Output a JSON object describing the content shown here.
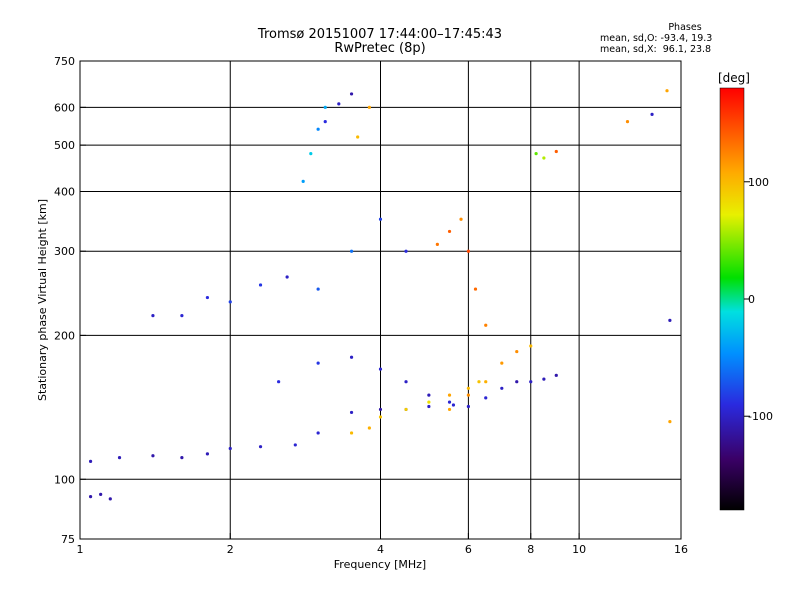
{
  "header": {
    "title_line1": "Tromsø 20151007 17:44:00–17:45:43",
    "title_line2": "RwPretec (8p)"
  },
  "phase_stats": {
    "heading": "Phases",
    "o_label": "mean, sd,O:",
    "o_values": "-93.4, 19.3",
    "x_label": "mean, sd,X:",
    "x_values": " 96.1, 23.8"
  },
  "colorbar": {
    "unit": "[deg]",
    "tick_labels": [
      "100",
      "0",
      "-100"
    ],
    "range": [
      -180,
      180
    ]
  },
  "chart_data": {
    "type": "scatter",
    "xlabel": "Frequency [MHz]",
    "ylabel": "Stationary phase Virtual Height [km]",
    "x_scale": "log",
    "y_scale": "log",
    "xlim": [
      1,
      16
    ],
    "ylim": [
      75,
      750
    ],
    "x_ticks": [
      1,
      2,
      4,
      6,
      8,
      10,
      16
    ],
    "x_tick_labels": [
      "1",
      "2",
      "4",
      "6",
      "8",
      "10",
      "16"
    ],
    "y_ticks": [
      75,
      100,
      200,
      300,
      400,
      500,
      600,
      750
    ],
    "y_tick_labels": [
      "75",
      "100",
      "200",
      "300",
      "400",
      "500",
      "600",
      "750"
    ],
    "grid_x": [
      2,
      4,
      6,
      8,
      10
    ],
    "grid_y": [
      100,
      200,
      300,
      400,
      500,
      600
    ],
    "grid": true,
    "series": [
      {
        "x": [
          1.05,
          1.2,
          1.4,
          1.6,
          1.8,
          2.0,
          2.3,
          2.7,
          3.0,
          3.5,
          4.0,
          4.5,
          5.0,
          5.6
        ],
        "y": [
          109,
          111,
          112,
          111,
          113,
          116,
          117,
          118,
          125,
          138,
          140,
          140,
          142,
          143
        ],
        "phase": [
          -105,
          -105,
          -110,
          -110,
          -105,
          -100,
          -100,
          -95,
          -95,
          -100,
          -110,
          -105,
          -100,
          -95
        ]
      },
      {
        "x": [
          2.5,
          3.0,
          3.5,
          4.0,
          4.5,
          5.0,
          5.5,
          6.0,
          6.5,
          7.0,
          7.5,
          8.0,
          8.5,
          9.0
        ],
        "y": [
          160,
          175,
          180,
          170,
          160,
          150,
          145,
          142,
          148,
          155,
          160,
          160,
          162,
          165
        ],
        "phase": [
          -90,
          -85,
          -100,
          -95,
          -100,
          -105,
          -95,
          -100,
          -95,
          -100,
          -110,
          -100,
          -105,
          -110
        ]
      },
      {
        "x": [
          3.5,
          3.8,
          4.0,
          4.5,
          5.0,
          5.5,
          6.0,
          6.3
        ],
        "y": [
          125,
          128,
          135,
          140,
          145,
          150,
          155,
          160
        ],
        "phase": [
          100,
          105,
          95,
          90,
          80,
          110,
          100,
          95
        ]
      },
      {
        "x": [
          5.2,
          5.5,
          5.8,
          6.0,
          6.2,
          6.5
        ],
        "y": [
          310,
          330,
          350,
          300,
          250,
          210
        ],
        "phase": [
          130,
          140,
          120,
          150,
          135,
          125
        ]
      },
      {
        "x": [
          5.5,
          6.0,
          6.5,
          7.0,
          7.5,
          8.0
        ],
        "y": [
          140,
          150,
          160,
          175,
          185,
          190
        ],
        "phase": [
          110,
          120,
          105,
          115,
          120,
          100
        ]
      },
      {
        "x": [
          2.8,
          2.9,
          3.0,
          3.1
        ],
        "y": [
          420,
          480,
          540,
          600
        ],
        "phase": [
          -40,
          -20,
          -50,
          -35
        ]
      },
      {
        "x": [
          3.1,
          3.3,
          3.5
        ],
        "y": [
          560,
          610,
          640
        ],
        "phase": [
          -90,
          -100,
          -110
        ]
      },
      {
        "x": [
          3.6,
          3.8
        ],
        "y": [
          520,
          600
        ],
        "phase": [
          100,
          110
        ]
      },
      {
        "x": [
          1.4,
          1.6,
          1.8,
          2.0,
          2.3,
          2.6
        ],
        "y": [
          220,
          220,
          240,
          235,
          255,
          265
        ],
        "phase": [
          -100,
          -95,
          -90,
          -80,
          -85,
          -100
        ]
      },
      {
        "x": [
          3.0,
          3.5,
          4.0,
          4.5
        ],
        "y": [
          250,
          300,
          350,
          300
        ],
        "phase": [
          -70,
          -60,
          -80,
          -90
        ]
      },
      {
        "x": [
          1.05,
          1.1,
          1.15
        ],
        "y": [
          92,
          93,
          91
        ],
        "phase": [
          -110,
          -110,
          -110
        ]
      },
      {
        "x": [
          8.2,
          8.5,
          9.0
        ],
        "y": [
          480,
          470,
          485
        ],
        "phase": [
          40,
          60,
          140
        ]
      },
      {
        "x": [
          12.5,
          14,
          15
        ],
        "y": [
          560,
          580,
          650
        ],
        "phase": [
          120,
          -100,
          110
        ]
      },
      {
        "x": [
          15.2,
          15.2
        ],
        "y": [
          215,
          132
        ],
        "phase": [
          -105,
          110
        ]
      }
    ]
  }
}
